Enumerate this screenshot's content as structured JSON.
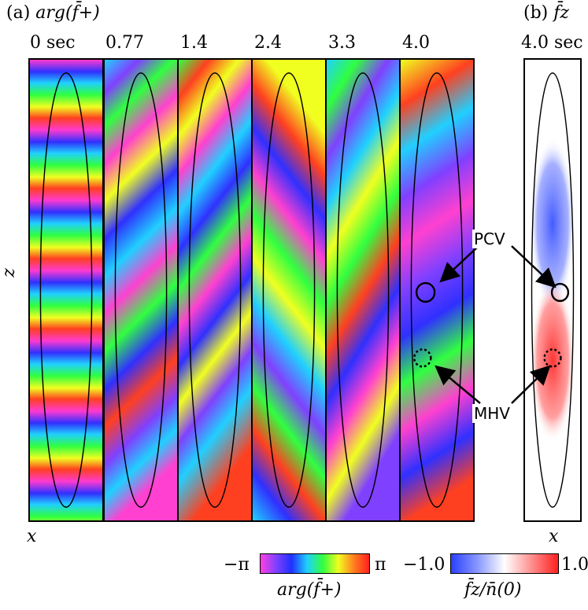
{
  "panel_a": {
    "label": "(a)",
    "title": "arg(f̄+)",
    "times": [
      "0 sec",
      "0.77",
      "1.4",
      "2.4",
      "3.3",
      "4.0"
    ],
    "axis_x": "x",
    "axis_z": "z"
  },
  "panel_b": {
    "label": "(b)",
    "title": "f̄z",
    "time": "4.0 sec",
    "axis_x": "x"
  },
  "annotations": {
    "pcv": "PCV",
    "mhv": "MHV"
  },
  "colorbar_phase": {
    "min_label": "−π",
    "max_label": "π",
    "caption": "arg(f̄+)"
  },
  "colorbar_fz": {
    "min_label": "−1.0",
    "max_label": "1.0",
    "caption": "f̄z/n̄(0)"
  },
  "colors": {
    "blue": "#3a52ff",
    "red": "#ff2a2a"
  }
}
